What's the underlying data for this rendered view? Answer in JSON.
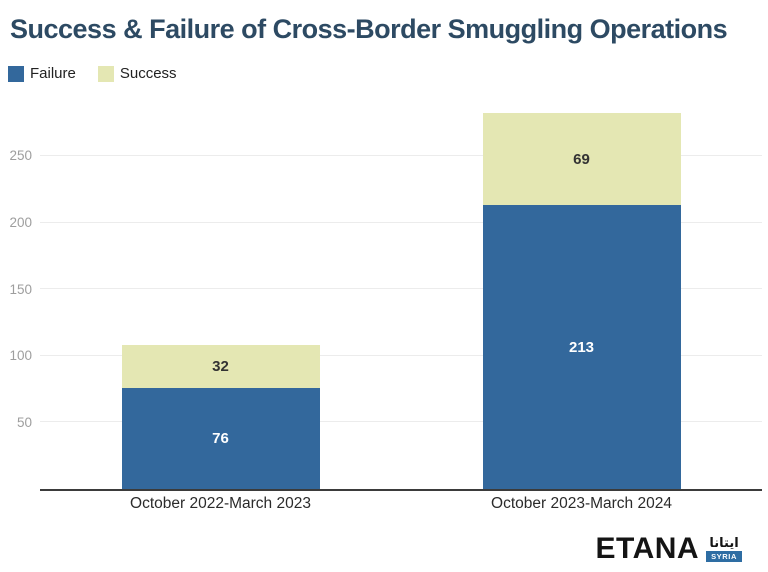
{
  "title": "Success & Failure of Cross-Border Smuggling Operations",
  "legend": [
    {
      "label": "Failure",
      "color": "#33689C"
    },
    {
      "label": "Success",
      "color": "#E4E7B3"
    }
  ],
  "chart_data": {
    "type": "bar",
    "stacked": true,
    "title": "Success & Failure of Cross-Border Smuggling Operations",
    "categories": [
      "October 2022-March 2023",
      "October 2023-March 2024"
    ],
    "series": [
      {
        "name": "Failure",
        "color": "#33689C",
        "label_color": "#FFFFFF",
        "values": [
          76,
          213
        ]
      },
      {
        "name": "Success",
        "color": "#E4E7B3",
        "label_color": "#333333",
        "values": [
          32,
          69
        ]
      }
    ],
    "totals": [
      108,
      282
    ],
    "y_ticks": [
      50,
      100,
      150,
      200,
      250
    ],
    "ylim": [
      0,
      292
    ],
    "xlabel": "",
    "ylabel": "",
    "grid": true,
    "legend_position": "top-left",
    "colors": {
      "gridline": "#ececec",
      "baseline": "#3b3b3b",
      "tick_label": "#9e9e9e",
      "title": "#2D4A63"
    }
  },
  "logo": {
    "wordmark": "ETANA",
    "arabic": "ايتانا",
    "badge": "SYRIA",
    "badge_color": "#2E6DA3"
  }
}
